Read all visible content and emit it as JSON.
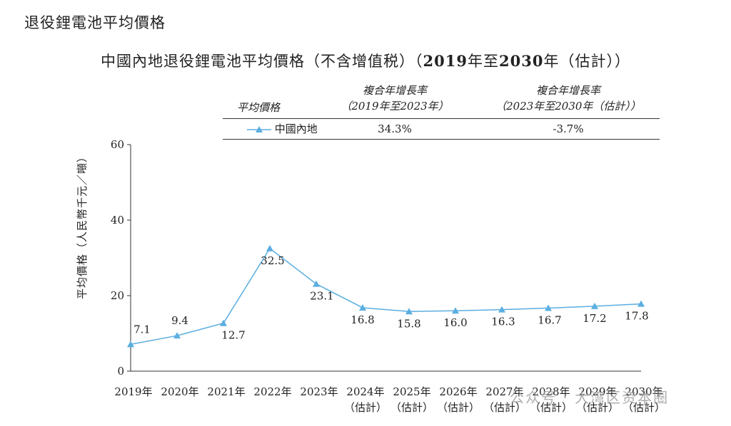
{
  "page_heading": "退役鋰電池平均價格",
  "chart_data": {
    "type": "line",
    "title_prefix": "中國內地退役鋰電池平均價格（不含增值税）（",
    "title_bold_1": "2019",
    "title_mid": "年至",
    "title_bold_2": "2030",
    "title_suffix": "年（估計））",
    "ylabel": "平均價格（人民幣千元／噸）",
    "ylim": [
      0,
      60
    ],
    "yticks": [
      "0",
      "20",
      "40",
      "60"
    ],
    "categories": [
      "2019年",
      "2020年",
      "2021年",
      "2022年",
      "2023年",
      "2024年",
      "2025年",
      "2026年",
      "2027年",
      "2028年",
      "2029年",
      "2030年"
    ],
    "category_sublabels": [
      "",
      "",
      "",
      "",
      "",
      "（估計）",
      "（估計）",
      "（估計）",
      "（估計）",
      "（估計）",
      "（估計）",
      "（估計）"
    ],
    "series": [
      {
        "name": "中國內地",
        "values": [
          7.1,
          9.4,
          12.7,
          32.5,
          23.1,
          16.8,
          15.8,
          16.0,
          16.3,
          16.7,
          17.2,
          17.8
        ],
        "labels": [
          "7.1",
          "9.4",
          "12.7",
          "32.5",
          "23.1",
          "16.8",
          "15.8",
          "16.0",
          "16.3",
          "16.7",
          "17.2",
          "17.8"
        ],
        "color": "#5aaee0",
        "marker": "triangle"
      }
    ],
    "cagr_table": {
      "header_price": "平均價格",
      "header_cagr1_line1": "複合年增長率",
      "header_cagr1_line2": "（2019年至2023年）",
      "header_cagr2_line1": "複合年增長率",
      "header_cagr2_line2": "（2023年至2030年（估計））",
      "row_name": "中國內地",
      "row_cagr1": "34.3%",
      "row_cagr2": "-3.7%"
    }
  },
  "watermark": "公众号 · 大湾区资本圈"
}
